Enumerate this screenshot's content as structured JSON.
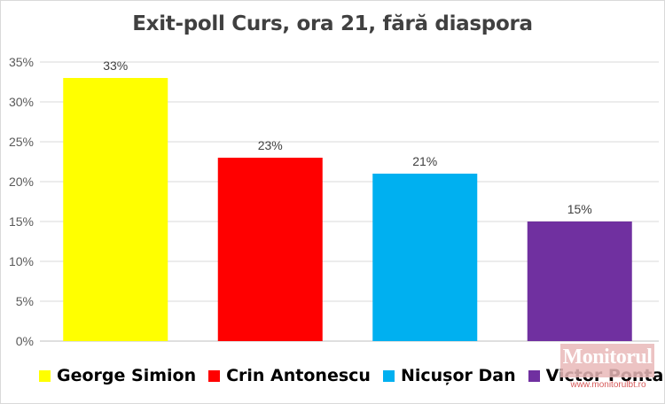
{
  "watermark": {
    "brand": "Monitorul",
    "url": "www.monitorulbt.ro"
  },
  "chart_data": {
    "type": "bar",
    "title": "Exit-poll Curs, ora 21, fără diaspora",
    "categories": [
      "George Simion",
      "Crin Antonescu",
      "Nicușor Dan",
      "Victor Ponta"
    ],
    "values": [
      33,
      23,
      21,
      15
    ],
    "data_labels": [
      "33%",
      "23%",
      "21%",
      "15%"
    ],
    "colors": [
      "#ffff00",
      "#ff0000",
      "#00b0f0",
      "#7030a0"
    ],
    "y_ticks": [
      0,
      5,
      10,
      15,
      20,
      25,
      30,
      35
    ],
    "y_tick_labels": [
      "0%",
      "5%",
      "10%",
      "15%",
      "20%",
      "25%",
      "30%",
      "35%"
    ],
    "ylim": [
      0,
      35
    ],
    "xlabel": "",
    "ylabel": "",
    "grid": true,
    "legend_position": "bottom"
  }
}
